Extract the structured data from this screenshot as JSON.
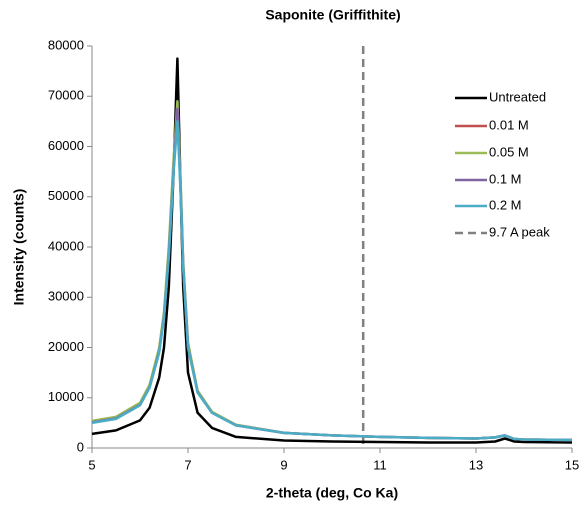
{
  "chart_data": {
    "type": "line",
    "title": "Saponite (Griffithite)",
    "x_label": "2-theta (deg, Co Ka)",
    "y_label": "Intensity (counts)",
    "x": [
      5,
      5.5,
      6,
      6.2,
      6.4,
      6.5,
      6.6,
      6.7,
      6.78,
      6.85,
      6.9,
      7,
      7.2,
      7.5,
      8,
      9,
      10,
      11,
      12,
      13,
      13.4,
      13.6,
      13.8,
      14,
      15
    ],
    "series": [
      {
        "name": "Untreated",
        "color": "#000000",
        "values": [
          2800,
          3500,
          5500,
          8000,
          14000,
          20000,
          32000,
          55000,
          77500,
          50000,
          32000,
          15000,
          7000,
          4000,
          2200,
          1500,
          1300,
          1200,
          1100,
          1100,
          1300,
          1900,
          1300,
          1200,
          1100
        ]
      },
      {
        "name": "0.01 M",
        "color": "#c0504d",
        "values": [
          5200,
          6000,
          8700,
          12300,
          19500,
          26500,
          39000,
          56000,
          67000,
          51000,
          36500,
          20500,
          11200,
          7100,
          4600,
          3000,
          2500,
          2200,
          2000,
          1900,
          2100,
          2500,
          1800,
          1700,
          1600
        ]
      },
      {
        "name": "0.05 M",
        "color": "#9bbb59",
        "values": [
          5400,
          6200,
          9000,
          12600,
          20000,
          27000,
          40000,
          57500,
          69000,
          52000,
          37000,
          21000,
          11400,
          7200,
          4600,
          3000,
          2500,
          2200,
          2000,
          1900,
          2100,
          2500,
          1800,
          1700,
          1600
        ]
      },
      {
        "name": "0.1 M",
        "color": "#8064a2",
        "values": [
          5100,
          5900,
          8600,
          12100,
          19200,
          26200,
          38500,
          55500,
          67500,
          50500,
          36200,
          20200,
          11100,
          7000,
          4500,
          3000,
          2500,
          2200,
          2000,
          1900,
          2100,
          2500,
          1800,
          1700,
          1600
        ]
      },
      {
        "name": "0.2 M",
        "color": "#4bacc6",
        "values": [
          5000,
          5800,
          8500,
          12000,
          19000,
          26000,
          38000,
          55000,
          65000,
          50000,
          36000,
          20000,
          11000,
          7000,
          4500,
          3000,
          2500,
          2200,
          2000,
          1900,
          2100,
          2500,
          1800,
          1700,
          1600
        ]
      }
    ],
    "vlines": [
      {
        "name": "9.7 A peak",
        "x": 10.65,
        "color": "#808080"
      }
    ],
    "xlim": [
      5,
      15
    ],
    "xticks": [
      5,
      7,
      9,
      11,
      13,
      15
    ],
    "ylim": [
      0,
      80000
    ],
    "yticks": [
      0,
      10000,
      20000,
      30000,
      40000,
      50000,
      60000,
      70000,
      80000
    ]
  }
}
